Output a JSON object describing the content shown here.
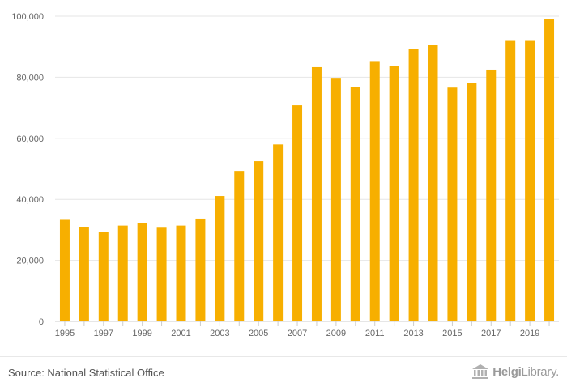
{
  "chart_data": {
    "type": "bar",
    "title": "",
    "xlabel": "",
    "ylabel": "",
    "ylim": [
      0,
      100000
    ],
    "yticks": [
      0,
      20000,
      40000,
      60000,
      80000,
      100000
    ],
    "ytick_labels": [
      "0",
      "20,000",
      "40,000",
      "60,000",
      "80,000",
      "100,000"
    ],
    "grid": true,
    "bar_color": "#F7AF00",
    "categories": [
      "1995",
      "1996",
      "1997",
      "1998",
      "1999",
      "2000",
      "2001",
      "2002",
      "2003",
      "2004",
      "2005",
      "2006",
      "2007",
      "2008",
      "2009",
      "2010",
      "2011",
      "2012",
      "2013",
      "2014",
      "2015",
      "2016",
      "2017",
      "2018",
      "2019",
      "2020"
    ],
    "xtick_labels": [
      "1995",
      "1997",
      "1999",
      "2001",
      "2003",
      "2005",
      "2007",
      "2009",
      "2011",
      "2013",
      "2015",
      "2017",
      "2019"
    ],
    "values": [
      33300,
      31000,
      29400,
      31400,
      32300,
      30700,
      31400,
      33700,
      41100,
      49300,
      52500,
      58000,
      70800,
      83300,
      79800,
      76900,
      85300,
      83800,
      89300,
      90700,
      76600,
      78000,
      82500,
      91900,
      91900,
      99200
    ]
  },
  "footer": {
    "source": "Source: National Statistical Office",
    "brand_bold": "Helgi",
    "brand_light": "Library.",
    "brand_icon": "library-building-icon"
  }
}
